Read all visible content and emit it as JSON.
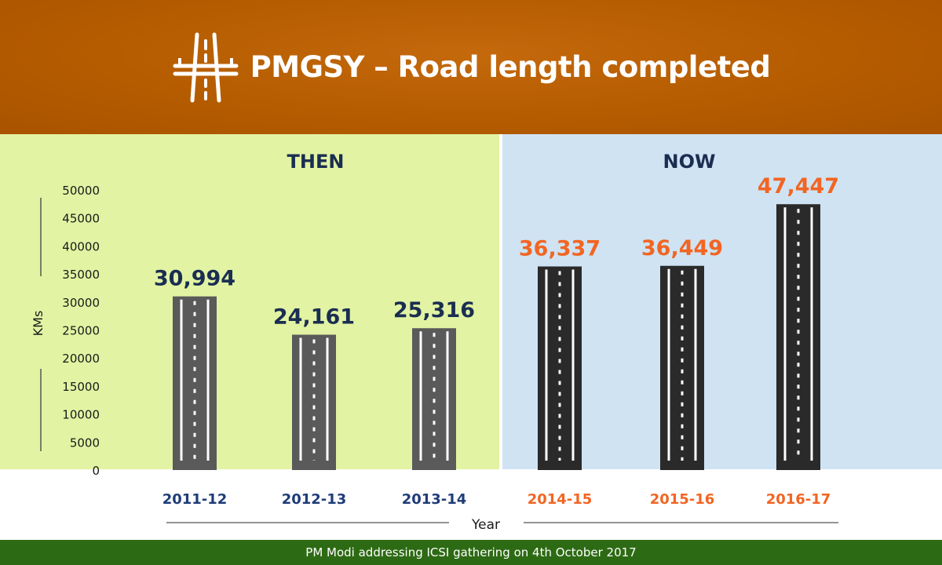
{
  "header": {
    "title": "PMGSY – Road length completed",
    "icon": "road-icon",
    "background_color": "#b55c00"
  },
  "sections": {
    "then_label": "THEN",
    "now_label": "NOW",
    "then_color": "#e2f3a3",
    "now_color": "#cfe3f3"
  },
  "chart_data": {
    "type": "bar",
    "categories": [
      "2011-12",
      "2012-13",
      "2013-14",
      "2014-15",
      "2015-16",
      "2016-17"
    ],
    "values": [
      30994,
      24161,
      25316,
      36337,
      36449,
      47447
    ],
    "data_labels": [
      "30,994",
      "24,161",
      "25,316",
      "36,337",
      "36,449",
      "47,447"
    ],
    "groups": [
      {
        "name": "THEN",
        "categories": [
          "2011-12",
          "2012-13",
          "2013-14"
        ],
        "color": "#1a2e52",
        "bar_color": "#5a5a5a"
      },
      {
        "name": "NOW",
        "categories": [
          "2014-15",
          "2015-16",
          "2016-17"
        ],
        "color": "#f26522",
        "bar_color": "#2a2a2a"
      }
    ],
    "xlabel": "Year",
    "ylabel": "KMs",
    "ylim": [
      0,
      50000
    ],
    "yticks": [
      0,
      5000,
      10000,
      15000,
      20000,
      25000,
      30000,
      35000,
      40000,
      45000,
      50000
    ],
    "grid": false,
    "legend": "none"
  },
  "footer": {
    "caption": "PM Modi addressing ICSI gathering on 4th October 2017",
    "background_color": "#2d6a14"
  }
}
